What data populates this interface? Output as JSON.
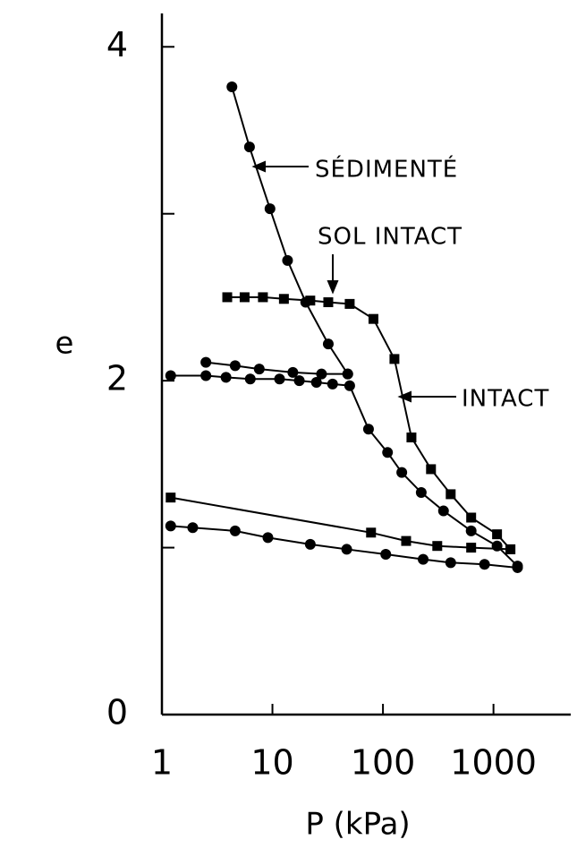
{
  "chart_data": {
    "type": "line",
    "log_x": true,
    "xlabel": "P (kPa)",
    "ylabel": "e",
    "xlim": [
      1,
      5000
    ],
    "ylim": [
      0,
      4.2
    ],
    "xticks": [
      1,
      10,
      100,
      1000
    ],
    "yticks": [
      0,
      2,
      4
    ],
    "yminor_ticks": [
      1,
      3
    ],
    "color": "#000000",
    "annotations": [
      "SÉDIMENTÉ",
      "SOL INTACT",
      "INTACT"
    ],
    "series": [
      {
        "marker": "circle",
        "x": [
          4.3,
          6.2,
          9.5,
          13.7,
          20,
          32,
          48
        ],
        "values": [
          3.76,
          3.4,
          3.03,
          2.72,
          2.47,
          2.22,
          2.04
        ]
      },
      {
        "marker": "circle",
        "x": [
          2.5,
          4.6,
          7.6,
          15.3,
          27.8,
          48
        ],
        "values": [
          2.11,
          2.09,
          2.07,
          2.05,
          2.04,
          2.04
        ]
      },
      {
        "marker": "circle",
        "x": [
          1.2,
          2.5,
          3.8,
          6.3,
          11.6,
          17.5,
          25,
          35,
          50,
          74,
          110,
          148,
          222,
          353,
          628,
          1077,
          1650
        ],
        "values": [
          2.03,
          2.03,
          2.02,
          2.01,
          2.01,
          2.0,
          1.99,
          1.98,
          1.97,
          1.71,
          1.57,
          1.45,
          1.33,
          1.22,
          1.1,
          1.01,
          0.89
        ]
      },
      {
        "marker": "circle",
        "x": [
          1.2,
          1.9,
          4.6,
          9.1,
          22,
          47,
          106,
          231,
          410,
          830,
          1650
        ],
        "values": [
          1.13,
          1.12,
          1.1,
          1.06,
          1.02,
          0.99,
          0.96,
          0.93,
          0.91,
          0.9,
          0.88
        ]
      },
      {
        "marker": "square",
        "x": [
          3.9,
          5.6,
          8.2,
          12.7,
          22,
          32,
          50,
          82,
          127,
          181,
          272,
          410,
          628,
          1077,
          1423
        ],
        "values": [
          2.5,
          2.5,
          2.5,
          2.49,
          2.48,
          2.47,
          2.46,
          2.37,
          2.13,
          1.66,
          1.47,
          1.32,
          1.18,
          1.08,
          0.99
        ]
      },
      {
        "marker": "square",
        "x": [
          1.2,
          78,
          162,
          310,
          628,
          1423
        ],
        "values": [
          1.3,
          1.09,
          1.04,
          1.01,
          1.0,
          0.99
        ]
      }
    ]
  }
}
